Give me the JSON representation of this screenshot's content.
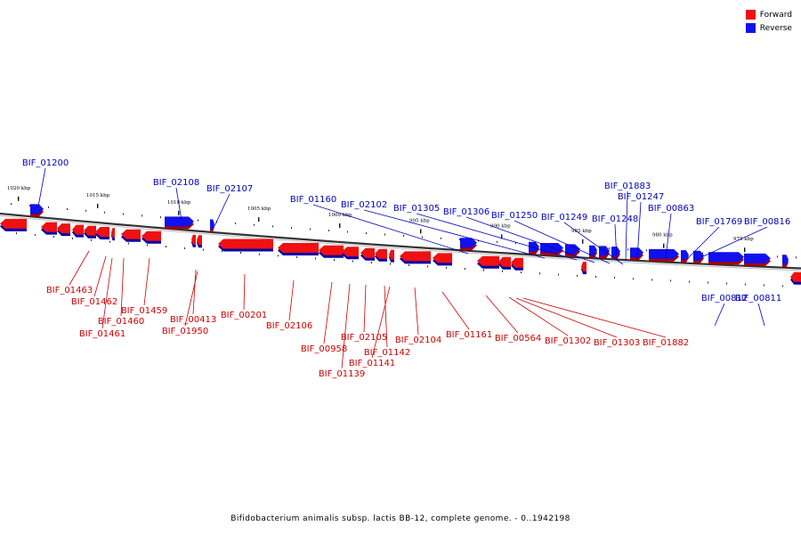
{
  "title": "Bifidobacterium animalis subsp. lactis BB-12, complete genome. - 0..1942198",
  "legend": [
    {
      "label": "Forward",
      "color": "#ee1111"
    },
    {
      "label": "Reverse",
      "color": "#1111ee"
    }
  ],
  "colors": {
    "forward": "#ee1111",
    "reverse": "#1111ee",
    "forward_label": "#cc0000",
    "reverse_label": "#0000bb"
  },
  "scale_ticks": [
    "1020 kbp",
    "1015 kbp",
    "1010 kbp",
    "1005 kbp",
    "1000 kbp",
    "995 kbp",
    "990 kbp",
    "985 kbp",
    "980 kbp",
    "975 kbp"
  ],
  "genes_reverse": [
    "BIF_01200",
    "BIF_02108",
    "BIF_02107",
    "BIF_01160",
    "BIF_02102",
    "BIF_01305",
    "BIF_01306",
    "BIF_01250",
    "BIF_01249",
    "BIF_01248",
    "BIF_01883",
    "BIF_01247",
    "BIF_00863",
    "BIF_01769",
    "BIF_00816",
    "BIF_00812",
    "BIF_00811"
  ],
  "genes_forward": [
    "BIF_01463",
    "BIF_01462",
    "BIF_01461",
    "BIF_01460",
    "BIF_01459",
    "BIF_00413",
    "BIF_01950",
    "BIF_00201",
    "BIF_02106",
    "BIF_00958",
    "BIF_01139",
    "BIF_02105",
    "BIF_01142",
    "BIF_01141",
    "BIF_02104",
    "BIF_01161",
    "BIF_00564",
    "BIF_01302",
    "BIF_01303",
    "BIF_01882"
  ]
}
